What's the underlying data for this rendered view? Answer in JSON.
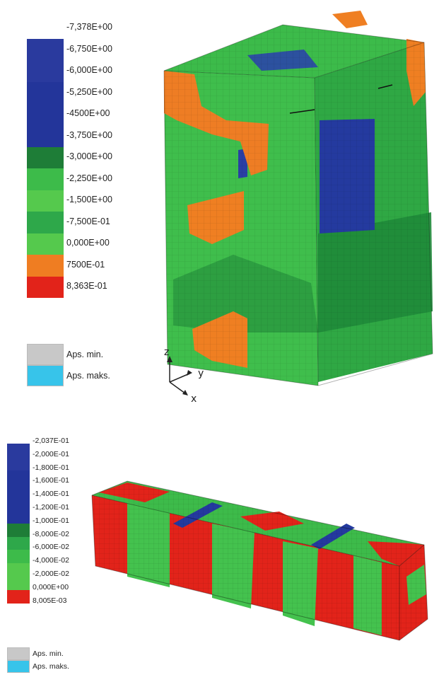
{
  "colors": {
    "dark_blue": "#2a3a9e",
    "blue": "#23359a",
    "dark_green": "#1e7d37",
    "mid_green": "#2ea84a",
    "green": "#3dbb4a",
    "light_green": "#55c94d",
    "orange": "#ef7d22",
    "red": "#e2231a",
    "aps_min": "#c8c8c8",
    "aps_max": "#37c4ea"
  },
  "top_legend": {
    "labels": [
      "-7,378E+00",
      "-6,750E+00",
      "-6,000E+00",
      "-5,250E+00",
      "-4500E+00",
      "-3,750E+00",
      "-3,000E+00",
      "-2,250E+00",
      "-1,500E+00",
      "-7,500E-01",
      "0,000E+00",
      "7500E-01",
      "8,363E-01"
    ],
    "aps_min": "Aps. min.",
    "aps_max": "Aps. maks."
  },
  "bottom_legend": {
    "labels": [
      "-2,037E-01",
      "-2,000E-01",
      "-1,800E-01",
      "-1,600E-01",
      "-1,400E-01",
      "-1,200E-01",
      "-1,000E-01",
      "-8,000E-02",
      "-6,000E-02",
      "-4,000E-02",
      "-2,000E-02",
      "0,000E+00",
      "8,005E-03"
    ],
    "aps_min": "Aps. min.",
    "aps_max": "Aps. maks."
  },
  "axes": {
    "z": "z",
    "y": "y",
    "x": "x"
  }
}
